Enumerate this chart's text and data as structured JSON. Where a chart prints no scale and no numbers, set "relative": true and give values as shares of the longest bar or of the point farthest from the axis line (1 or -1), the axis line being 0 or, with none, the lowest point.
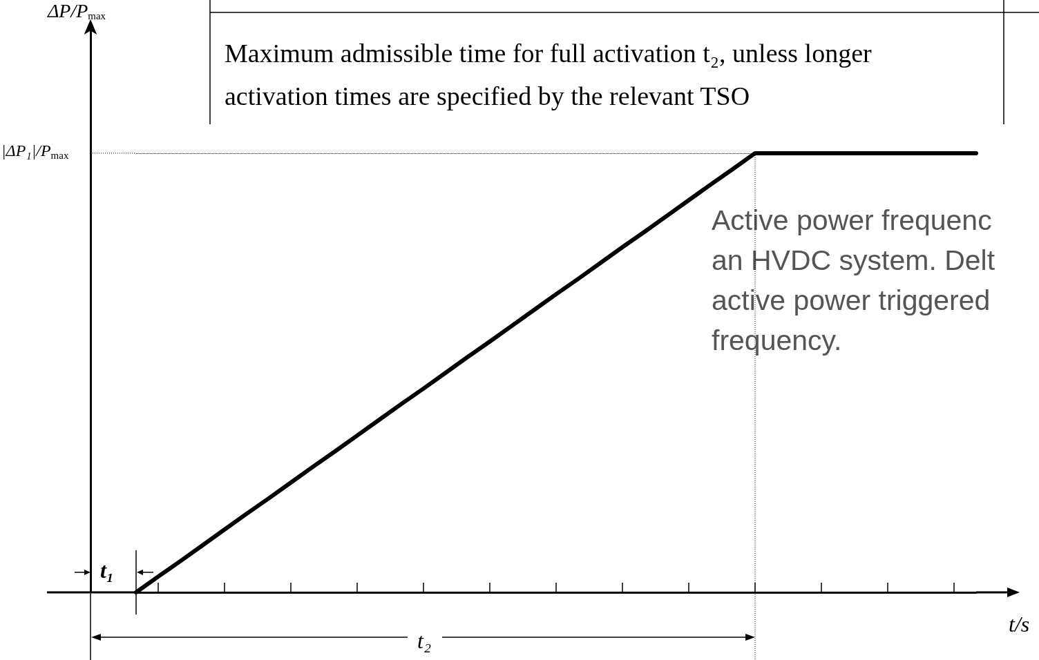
{
  "chart_data": {
    "type": "line",
    "relative": true,
    "xlabel": "t/s",
    "categories": [
      null,
      null,
      null,
      null,
      null,
      null,
      null,
      null,
      null,
      null,
      null,
      null,
      null,
      null,
      null,
      null,
      null,
      null,
      null,
      null,
      null,
      null,
      null,
      null,
      null,
      null,
      null,
      null,
      null,
      null,
      null,
      null,
      null,
      null,
      null,
      null,
      null,
      null,
      null
    ],
    "series": [
      {
        "color": "#000000",
        "values": [
          0,
          0.036,
          0.071,
          0.107,
          0.143,
          0.179,
          0.214,
          0.25,
          0.286,
          0.321,
          0.357,
          0.393,
          0.429,
          0.464,
          0.5,
          0.536,
          0.571,
          0.607,
          0.643,
          0.679,
          0.714,
          0.75,
          0.786,
          0.821,
          0.857,
          0.893,
          0.929,
          0.964,
          1,
          1,
          1,
          1,
          1,
          1,
          1,
          1,
          1,
          1,
          1
        ]
      }
    ],
    "ref_lines": [
      {
        "axis": "y",
        "value": 1,
        "label": "|ΔP₁|/P$_{max}$",
        "line_style": "dotted",
        "color": "#000000"
      }
    ],
    "annotations": [
      "Maximum admissible time for full activation t₂, unless longer activation times are specified by the relevant TSO",
      "Active power frequenc\nan HVDC system. Delt\nactive power triggered\nfrequency.",
      "t₁",
      "t₂",
      "ΔP/P$_{max}$"
    ],
    "grid": false,
    "marker": "none",
    "line_style": "solid"
  }
}
